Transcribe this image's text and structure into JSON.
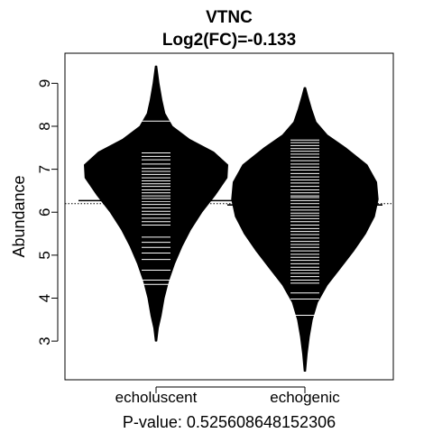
{
  "chart_data": {
    "type": "beanplot",
    "title": "VTNC",
    "subtitle": "Log2(FC)=-0.133",
    "xlabel": "P-value: 0.525608648152306",
    "ylabel": "Abundance",
    "ylim": [
      2.1,
      9.7
    ],
    "yticks": [
      3,
      4,
      5,
      6,
      7,
      8,
      9
    ],
    "overall_mean": 6.2,
    "categories": [
      "echoluscent",
      "echogenic"
    ],
    "groups": [
      {
        "name": "echoluscent",
        "mean": 6.27,
        "range": [
          3.0,
          9.4
        ],
        "density": [
          [
            3.0,
            0.01
          ],
          [
            3.3,
            0.03
          ],
          [
            3.6,
            0.07
          ],
          [
            4.0,
            0.11
          ],
          [
            4.4,
            0.17
          ],
          [
            4.8,
            0.25
          ],
          [
            5.2,
            0.35
          ],
          [
            5.6,
            0.47
          ],
          [
            6.0,
            0.62
          ],
          [
            6.4,
            0.8
          ],
          [
            6.8,
            0.96
          ],
          [
            7.1,
            0.97
          ],
          [
            7.4,
            0.78
          ],
          [
            7.7,
            0.45
          ],
          [
            8.0,
            0.22
          ],
          [
            8.3,
            0.12
          ],
          [
            8.6,
            0.08
          ],
          [
            9.0,
            0.04
          ],
          [
            9.4,
            0.01
          ]
        ],
        "observations": [
          8.12,
          7.38,
          7.3,
          7.22,
          7.12,
          7.02,
          6.95,
          6.88,
          6.8,
          6.73,
          6.66,
          6.6,
          6.52,
          6.45,
          6.38,
          6.32,
          6.25,
          6.18,
          6.1,
          6.02,
          5.95,
          5.86,
          5.78,
          5.7,
          5.42,
          5.3,
          5.18,
          5.05,
          4.9,
          4.65,
          4.42,
          4.32
        ]
      },
      {
        "name": "echogenic",
        "mean": 6.17,
        "range": [
          2.3,
          8.9
        ],
        "density": [
          [
            2.3,
            0.01
          ],
          [
            2.7,
            0.03
          ],
          [
            3.1,
            0.06
          ],
          [
            3.5,
            0.1
          ],
          [
            3.9,
            0.17
          ],
          [
            4.3,
            0.3
          ],
          [
            4.7,
            0.48
          ],
          [
            5.1,
            0.66
          ],
          [
            5.5,
            0.82
          ],
          [
            5.9,
            0.94
          ],
          [
            6.3,
            0.99
          ],
          [
            6.7,
            0.97
          ],
          [
            7.1,
            0.84
          ],
          [
            7.5,
            0.55
          ],
          [
            7.8,
            0.3
          ],
          [
            8.1,
            0.15
          ],
          [
            8.4,
            0.09
          ],
          [
            8.7,
            0.04
          ],
          [
            8.9,
            0.01
          ]
        ],
        "observations": [
          7.68,
          7.62,
          7.55,
          7.48,
          7.42,
          7.35,
          7.28,
          7.2,
          7.12,
          7.05,
          6.98,
          6.9,
          6.82,
          6.75,
          6.68,
          6.6,
          6.52,
          6.45,
          6.38,
          6.34,
          6.27,
          6.2,
          6.12,
          6.05,
          5.98,
          5.92,
          5.85,
          5.78,
          5.7,
          5.62,
          5.55,
          5.48,
          5.4,
          5.32,
          5.25,
          5.18,
          5.1,
          5.02,
          4.95,
          4.88,
          4.8,
          4.72,
          4.65,
          4.58,
          4.5,
          4.42,
          4.35,
          4.12,
          3.98,
          3.6
        ]
      }
    ]
  }
}
